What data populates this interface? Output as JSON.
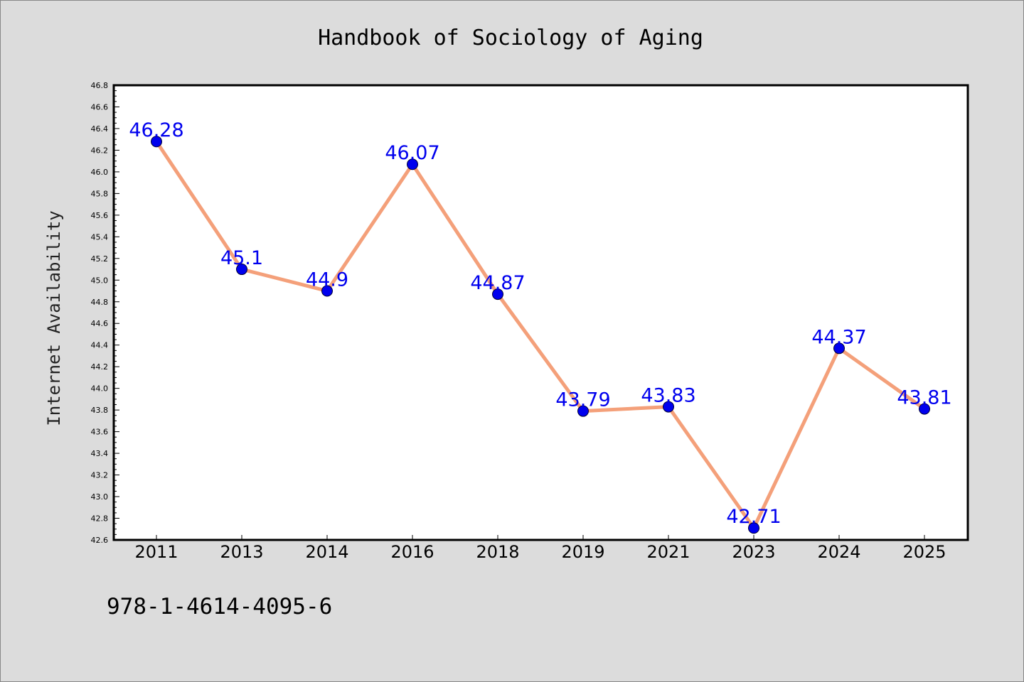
{
  "footer": {
    "isbn": "978-1-4614-4095-6"
  },
  "colors": {
    "background": "#dcdcdc",
    "plot_area": "#ffffff",
    "line": "#f4a07a",
    "marker": "#0000ee",
    "data_label": "#0000ee"
  },
  "chart_data": {
    "type": "line",
    "title": "Handbook of Sociology of Aging",
    "xlabel": "",
    "ylabel": "Internet Availability",
    "categories": [
      "2011",
      "2013",
      "2014",
      "2016",
      "2018",
      "2019",
      "2021",
      "2023",
      "2024",
      "2025"
    ],
    "values": [
      46.28,
      45.1,
      44.9,
      46.07,
      44.87,
      43.79,
      43.83,
      42.71,
      44.37,
      43.81
    ],
    "data_labels": [
      "46.28",
      "45.1",
      "44.9",
      "46.07",
      "44.87",
      "43.79",
      "43.83",
      "42.71",
      "44.37",
      "43.81"
    ],
    "ylim": [
      42.6,
      46.8
    ],
    "yticks": [
      "42.6",
      "42.8",
      "43.0",
      "43.2",
      "43.4",
      "43.6",
      "43.8",
      "44.0",
      "44.2",
      "44.4",
      "44.6",
      "44.8",
      "45.0",
      "45.2",
      "45.4",
      "45.6",
      "45.8",
      "46.0",
      "46.2",
      "46.4",
      "46.6",
      "46.8"
    ],
    "grid": false,
    "legend": "none"
  }
}
